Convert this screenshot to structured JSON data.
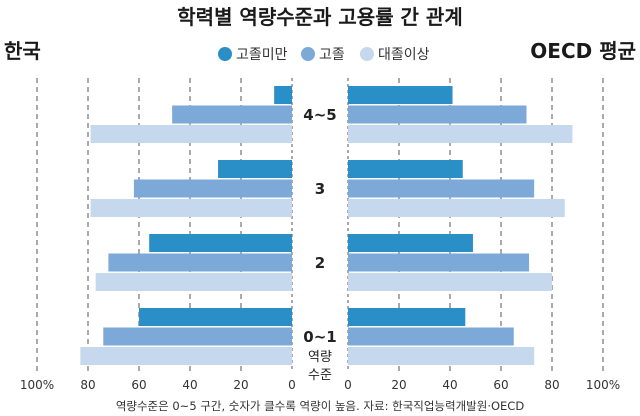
{
  "chart_data": {
    "type": "bar",
    "title": "학력별 역량수준과 고용률 간 관계",
    "left_label": "한국",
    "right_label": "OECD 평균",
    "y_axis_label": [
      "역량",
      "수준"
    ],
    "categories": [
      "4~5",
      "3",
      "2",
      "0~1"
    ],
    "xlim": [
      0,
      100
    ],
    "grid": true,
    "legend_position": "top",
    "ticks_left": [
      "100%",
      "80",
      "60",
      "40",
      "20",
      "0"
    ],
    "ticks_right": [
      "0",
      "20",
      "40",
      "60",
      "80",
      "100%"
    ],
    "series": [
      {
        "name": "고졸미만",
        "color": "#2a8fc7",
        "korea": [
          7,
          29,
          56,
          60
        ],
        "oecd": [
          41,
          45,
          49,
          46
        ]
      },
      {
        "name": "고졸",
        "color": "#7da9d9",
        "korea": [
          47,
          62,
          72,
          74
        ],
        "oecd": [
          70,
          73,
          71,
          65
        ]
      },
      {
        "name": "대졸이상",
        "color": "#c6d8ee",
        "korea": [
          79,
          79,
          77,
          83
        ],
        "oecd": [
          88,
          85,
          80,
          73
        ]
      }
    ],
    "source": "역량수준은 0~5 구간, 숫자가 클수록 역량이 높음. 자료: 한국직업능력개발원·OECD"
  }
}
